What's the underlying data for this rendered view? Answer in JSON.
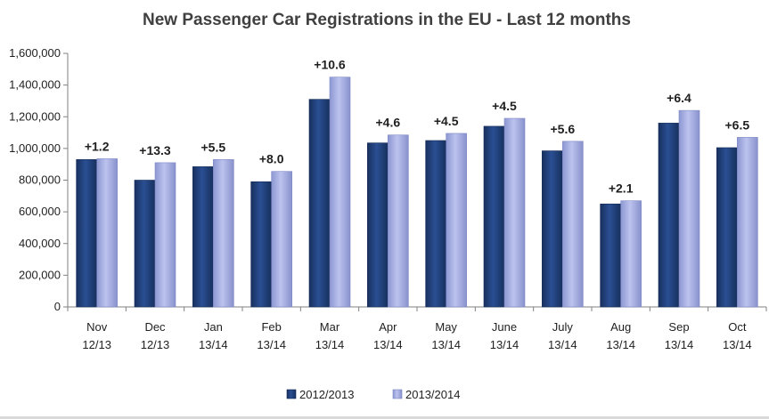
{
  "chart_data": {
    "type": "bar",
    "title": "New Passenger Car Registrations in the EU  - Last 12 months",
    "categories": [
      {
        "month": "Nov",
        "period": "12/13"
      },
      {
        "month": "Dec",
        "period": "12/13"
      },
      {
        "month": "Jan",
        "period": "13/14"
      },
      {
        "month": "Feb",
        "period": "13/14"
      },
      {
        "month": "Mar",
        "period": "13/14"
      },
      {
        "month": "Apr",
        "period": "13/14"
      },
      {
        "month": "May",
        "period": "13/14"
      },
      {
        "month": "June",
        "period": "13/14"
      },
      {
        "month": "July",
        "period": "13/14"
      },
      {
        "month": "Aug",
        "period": "13/14"
      },
      {
        "month": "Sep",
        "period": "13/14"
      },
      {
        "month": "Oct",
        "period": "13/14"
      }
    ],
    "series": [
      {
        "name": "2012/2013",
        "color": "#1f3d7a",
        "values": [
          930000,
          800000,
          885000,
          790000,
          1310000,
          1035000,
          1050000,
          1140000,
          985000,
          650000,
          1160000,
          1005000
        ]
      },
      {
        "name": "2013/2014",
        "color": "#9ea7dc",
        "values": [
          935000,
          910000,
          930000,
          855000,
          1450000,
          1085000,
          1095000,
          1190000,
          1045000,
          670000,
          1240000,
          1070000
        ]
      }
    ],
    "data_labels": [
      "+1.2",
      "+13.3",
      "+5.5",
      "+8.0",
      "+10.6",
      "+4.6",
      "+4.5",
      "+4.5",
      "+5.6",
      "+2.1",
      "+6.4",
      "+6.5"
    ],
    "yticks": [
      0,
      200000,
      400000,
      600000,
      800000,
      1000000,
      1200000,
      1400000,
      1600000
    ],
    "ytick_labels": [
      "0",
      "200,000",
      "400,000",
      "600,000",
      "800,000",
      "1,000,000",
      "1,200,000",
      "1,400,000",
      "1,600,000"
    ],
    "ylim": [
      0,
      1600000
    ],
    "xlabel": "",
    "ylabel": "",
    "legend_position": "bottom"
  }
}
